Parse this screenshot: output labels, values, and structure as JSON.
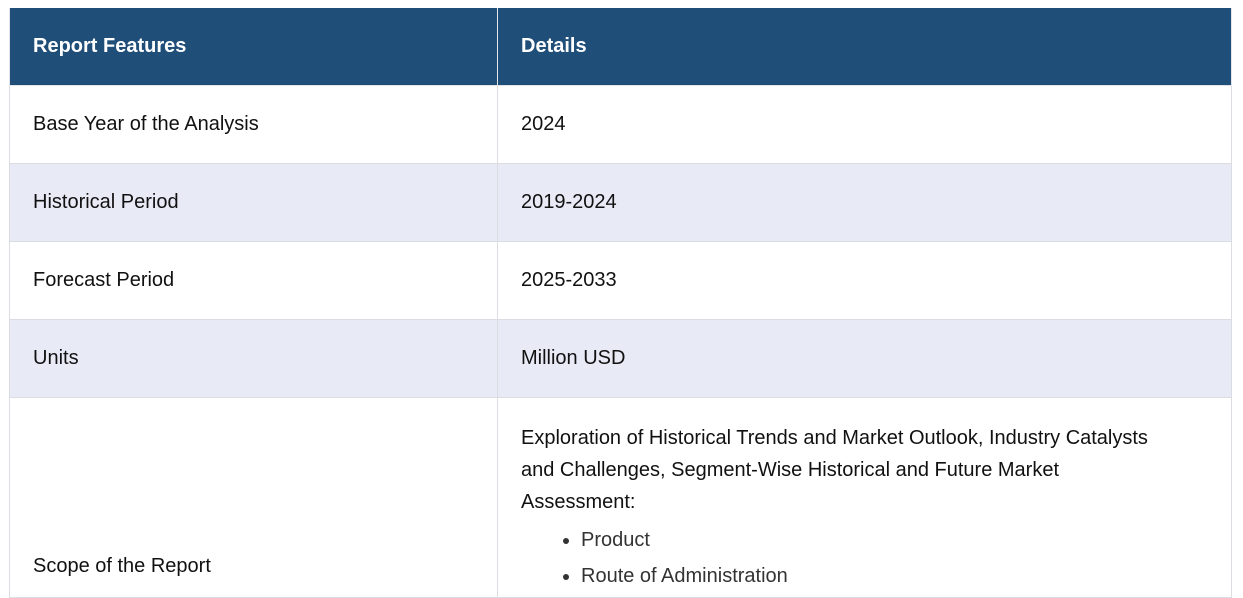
{
  "table": {
    "headers": {
      "feature": "Report Features",
      "details": "Details"
    },
    "rows": [
      {
        "feature": "Base Year of the Analysis",
        "details": "2024"
      },
      {
        "feature": "Historical Period",
        "details": "2019-2024"
      },
      {
        "feature": "Forecast Period",
        "details": "2025-2033"
      },
      {
        "feature": "Units",
        "details": "Million USD"
      }
    ],
    "scope": {
      "feature": "Scope of the Report",
      "text": "Exploration of Historical Trends and Market Outlook, Industry Catalysts and Challenges, Segment-Wise Historical and Future Market Assessment:",
      "items": [
        "Product",
        "Route of Administration"
      ]
    }
  },
  "colors": {
    "header_bg": "#1f4e79",
    "alt_row_bg": "#e8eaf6"
  }
}
